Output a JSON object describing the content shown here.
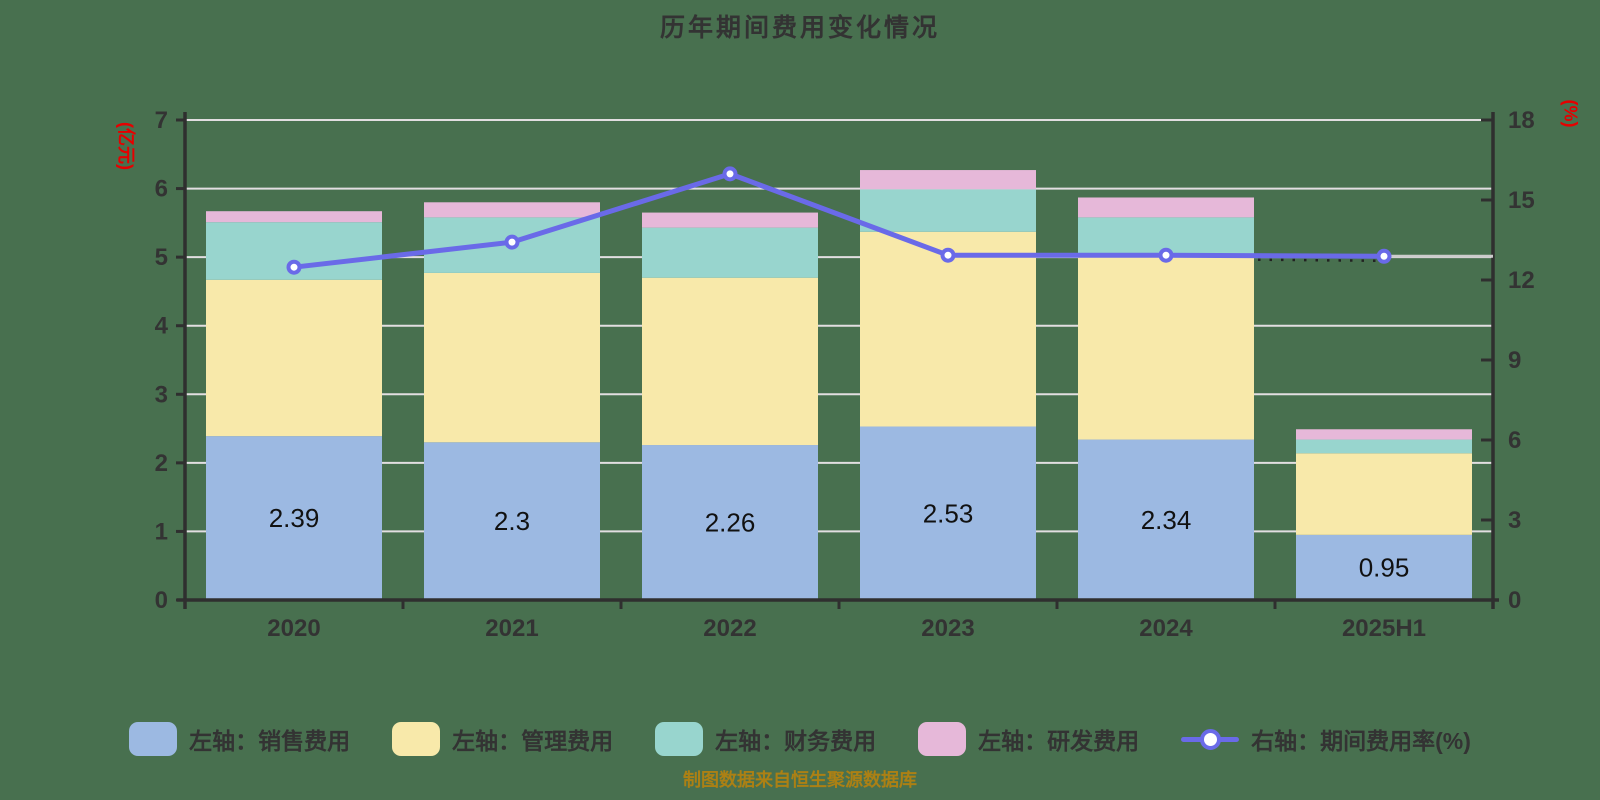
{
  "title": "历年期间费用变化情况",
  "caption": "制图数据来自恒生聚源数据库",
  "colors": {
    "background": "#48704f",
    "title_text": "#333333",
    "axis_line": "#2f2f2f",
    "tick_text": "#333333",
    "grid_line": "#e2dee1",
    "axis_name_red": "#e60000",
    "bar_label_text": "#111111",
    "caption_text": "#ac8014",
    "legend_text": "#333333",
    "gray_tail": "#cccccc",
    "dotted_overlay": "#222222"
  },
  "chart_data": {
    "type": "bar",
    "subtype": "stacked-bar-with-line",
    "title": "历年期间费用变化情况",
    "categories": [
      "2020",
      "2021",
      "2022",
      "2023",
      "2024",
      "2025H1"
    ],
    "left_axis": {
      "name": "(亿元)",
      "min": 0,
      "max": 7,
      "ticks": [
        0,
        1,
        2,
        3,
        4,
        5,
        6,
        7
      ],
      "grid_at": [
        1,
        2,
        3,
        4,
        5,
        6,
        7
      ]
    },
    "right_axis": {
      "name": "(%)",
      "min": 0,
      "max": 18,
      "ticks": [
        0,
        3,
        6,
        9,
        12,
        15,
        18
      ]
    },
    "grid": "horizontal-only",
    "legend_position": "bottom",
    "series": [
      {
        "name": "左轴：销售费用",
        "key": "sales-expense",
        "type": "bar",
        "stack": true,
        "color": "#9cb9e2",
        "values": [
          2.39,
          2.3,
          2.26,
          2.53,
          2.34,
          0.95
        ],
        "value_labels": [
          "2.39",
          "2.3",
          "2.26",
          "2.53",
          "2.34",
          "0.95"
        ]
      },
      {
        "name": "左轴：管理费用",
        "key": "management-expense",
        "type": "bar",
        "stack": true,
        "color": "#f8e9aa",
        "values": [
          2.28,
          2.47,
          2.44,
          2.84,
          2.66,
          1.19
        ]
      },
      {
        "name": "左轴：财务费用",
        "key": "financial-expense",
        "type": "bar",
        "stack": true,
        "color": "#98d5ce",
        "values": [
          0.84,
          0.81,
          0.73,
          0.62,
          0.58,
          0.2
        ]
      },
      {
        "name": "左轴：研发费用",
        "key": "rd-expense",
        "type": "bar",
        "stack": true,
        "color": "#e6b8d9",
        "values": [
          0.16,
          0.22,
          0.22,
          0.28,
          0.29,
          0.15
        ]
      },
      {
        "name": "右轴：期间费用率(%)",
        "key": "expense-ratio",
        "type": "line",
        "axis": "right",
        "color": "#6a6ae8",
        "marker": "circle-white-fill",
        "values": [
          12.48,
          13.42,
          15.98,
          12.93,
          12.93,
          12.89
        ],
        "last_segment_dotted_overlay": true,
        "gray_tail_after_last_point": true
      }
    ],
    "stack_totals": [
      5.67,
      5.8,
      5.65,
      6.27,
      5.87,
      2.49
    ]
  }
}
